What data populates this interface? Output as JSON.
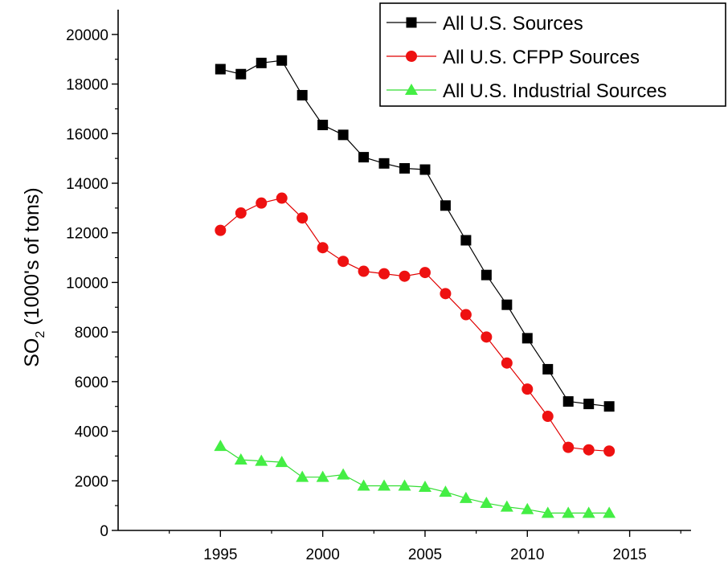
{
  "chart_data": {
    "type": "line",
    "ylabel_main": "SO",
    "ylabel_sub": "2",
    "ylabel_rest": " (1000's of tons)",
    "xlim": [
      1990,
      2018
    ],
    "ylim": [
      0,
      21000
    ],
    "xticks": [
      1995,
      2000,
      2005,
      2010,
      2015
    ],
    "yticks": [
      0,
      2000,
      4000,
      6000,
      8000,
      10000,
      12000,
      14000,
      16000,
      18000,
      20000
    ],
    "grid": false,
    "legend_position": "top-right",
    "x": [
      1995,
      1996,
      1997,
      1998,
      1999,
      2000,
      2001,
      2002,
      2003,
      2004,
      2005,
      2006,
      2007,
      2008,
      2009,
      2010,
      2011,
      2012,
      2013,
      2014
    ],
    "series": [
      {
        "name": "All U.S. Sources",
        "marker": "square",
        "line_color": "#000000",
        "marker_color": "#000000",
        "values": [
          18600,
          18400,
          18850,
          18950,
          17550,
          16350,
          15950,
          15050,
          14800,
          14600,
          14550,
          13100,
          11700,
          10300,
          9100,
          7750,
          6500,
          5200,
          5100,
          5000
        ]
      },
      {
        "name": "All U.S. CFPP Sources",
        "marker": "circle",
        "line_color": "#e00000",
        "marker_color": "#ee1111",
        "values": [
          12100,
          12800,
          13200,
          13400,
          12600,
          11400,
          10850,
          10450,
          10350,
          10250,
          10400,
          9550,
          8700,
          7800,
          6750,
          5700,
          4600,
          3350,
          3250,
          3200
        ]
      },
      {
        "name": "All U.S. Industrial Sources",
        "marker": "triangle",
        "line_color": "#33dd33",
        "marker_color": "#44ee44",
        "values": [
          3400,
          2850,
          2800,
          2750,
          2150,
          2150,
          2250,
          1800,
          1800,
          1800,
          1750,
          1550,
          1300,
          1100,
          950,
          850,
          700,
          700,
          700,
          700
        ]
      }
    ]
  }
}
